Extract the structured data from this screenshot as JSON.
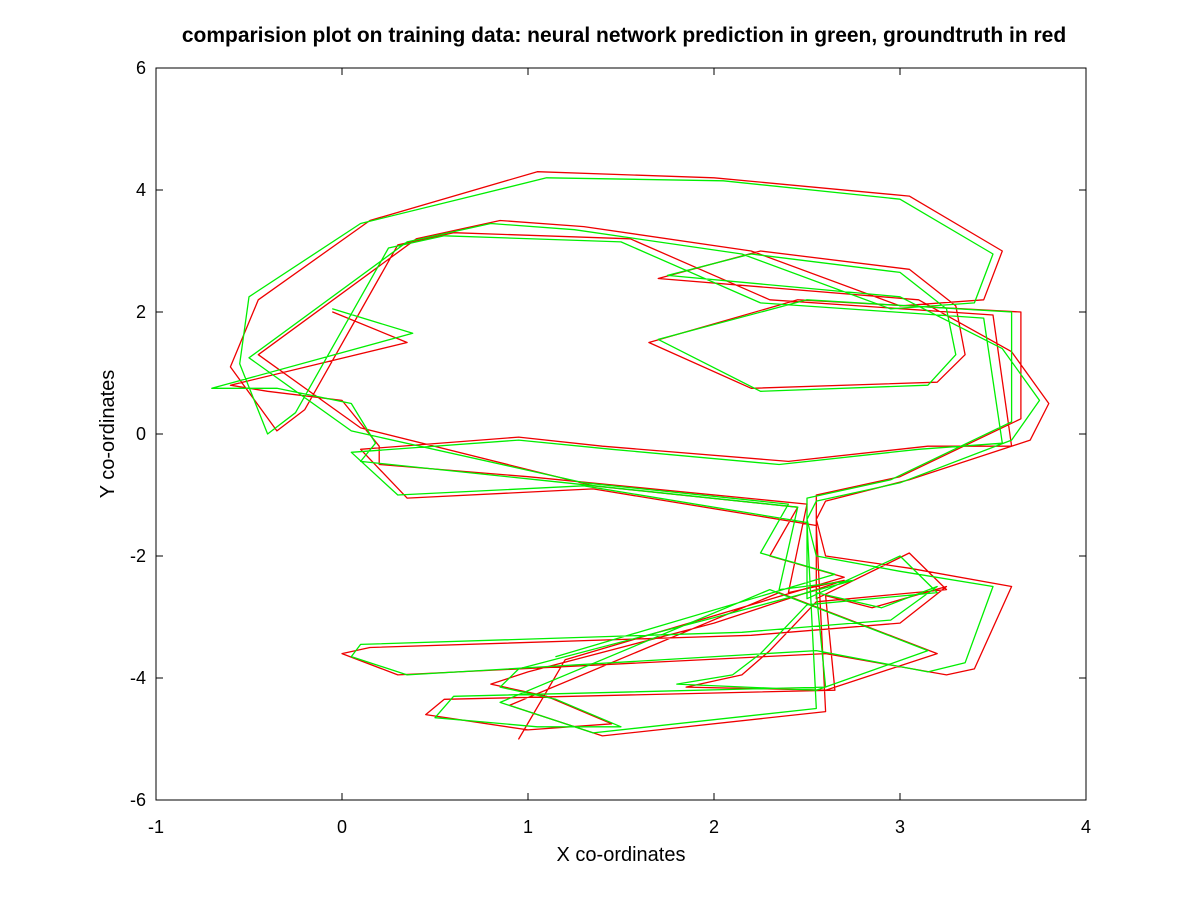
{
  "chart_data": {
    "type": "line",
    "title": "comparision plot on training data: neural network prediction in green, groundtruth in red",
    "xlabel": "X co-ordinates",
    "ylabel": "Y co-ordinates",
    "xlim": [
      -1,
      4
    ],
    "ylim": [
      -6,
      6
    ],
    "x_ticks": [
      -1,
      0,
      1,
      2,
      3,
      4
    ],
    "y_ticks": [
      -6,
      -4,
      -2,
      0,
      2,
      4,
      6
    ],
    "x_tick_labels": [
      "-1",
      "0",
      "1",
      "2",
      "3",
      "4"
    ],
    "y_tick_labels": [
      "-6",
      "-4",
      "-2",
      "0",
      "2",
      "4",
      "6"
    ],
    "grid": false,
    "legend": "none",
    "colors": {
      "green": "#00ee00",
      "red": "#ee0000"
    },
    "series": [
      {
        "color": "#ee0000",
        "points": [
          [
            -0.05,
            2.0
          ],
          [
            0.35,
            1.5
          ],
          [
            -0.6,
            0.8
          ],
          [
            -0.4,
            0.7
          ],
          [
            0.0,
            0.55
          ],
          [
            0.2,
            -0.2
          ],
          [
            0.2,
            -0.5
          ],
          [
            1.0,
            -0.7
          ],
          [
            2.5,
            -1.15
          ],
          [
            2.4,
            -2.6
          ],
          [
            2.7,
            -2.4
          ],
          [
            2.0,
            -3.1
          ],
          [
            1.0,
            -3.9
          ],
          [
            0.8,
            -4.1
          ],
          [
            1.1,
            -4.3
          ],
          [
            1.45,
            -4.75
          ],
          [
            1.0,
            -4.85
          ],
          [
            0.45,
            -4.6
          ],
          [
            0.55,
            -4.35
          ],
          [
            2.65,
            -4.2
          ],
          [
            2.6,
            -2.65
          ],
          [
            2.85,
            -2.85
          ],
          [
            3.25,
            -2.5
          ],
          [
            3.0,
            -3.1
          ],
          [
            2.2,
            -3.3
          ],
          [
            0.15,
            -3.5
          ],
          [
            0.0,
            -3.6
          ],
          [
            0.3,
            -3.95
          ],
          [
            2.6,
            -3.6
          ],
          [
            3.25,
            -3.95
          ],
          [
            3.4,
            -3.85
          ],
          [
            3.6,
            -2.5
          ],
          [
            3.05,
            -2.2
          ],
          [
            2.6,
            -2.0
          ],
          [
            2.55,
            -1.4
          ],
          [
            2.6,
            -1.1
          ],
          [
            3.05,
            -0.75
          ],
          [
            3.7,
            -0.1
          ],
          [
            3.8,
            0.5
          ],
          [
            3.6,
            1.35
          ],
          [
            3.1,
            2.2
          ],
          [
            1.7,
            2.55
          ],
          [
            2.25,
            3.0
          ],
          [
            3.05,
            2.7
          ],
          [
            3.3,
            2.1
          ],
          [
            3.35,
            1.3
          ],
          [
            3.2,
            0.85
          ],
          [
            2.2,
            0.75
          ],
          [
            1.65,
            1.5
          ],
          [
            2.45,
            2.2
          ],
          [
            3.65,
            2.0
          ],
          [
            3.65,
            0.25
          ],
          [
            3.0,
            -0.7
          ],
          [
            2.55,
            -1.0
          ],
          [
            2.55,
            -2.7
          ],
          [
            3.05,
            -1.95
          ],
          [
            3.25,
            -2.55
          ],
          [
            2.55,
            -2.75
          ],
          [
            2.3,
            -3.55
          ],
          [
            2.15,
            -3.95
          ],
          [
            1.85,
            -4.15
          ],
          [
            2.6,
            -4.2
          ],
          [
            3.2,
            -3.6
          ],
          [
            2.35,
            -2.6
          ],
          [
            0.9,
            -4.45
          ],
          [
            1.4,
            -4.95
          ],
          [
            2.6,
            -4.55
          ],
          [
            2.55,
            -1.5
          ],
          [
            1.35,
            -0.9
          ],
          [
            0.35,
            -1.05
          ],
          [
            0.1,
            -0.25
          ],
          [
            0.95,
            -0.05
          ],
          [
            1.4,
            -0.2
          ],
          [
            2.4,
            -0.45
          ],
          [
            3.15,
            -0.2
          ],
          [
            3.6,
            -0.2
          ],
          [
            3.5,
            1.95
          ],
          [
            2.3,
            2.2
          ],
          [
            1.55,
            3.2
          ],
          [
            0.6,
            3.3
          ],
          [
            0.3,
            3.1
          ],
          [
            -0.2,
            0.4
          ],
          [
            -0.35,
            0.05
          ],
          [
            -0.6,
            1.1
          ],
          [
            -0.45,
            2.2
          ],
          [
            0.15,
            3.5
          ],
          [
            1.05,
            4.3
          ],
          [
            2.0,
            4.2
          ],
          [
            3.05,
            3.9
          ],
          [
            3.55,
            3.0
          ],
          [
            3.45,
            2.2
          ],
          [
            3.0,
            2.1
          ],
          [
            2.2,
            3.0
          ],
          [
            1.3,
            3.4
          ],
          [
            0.85,
            3.5
          ],
          [
            0.4,
            3.2
          ],
          [
            -0.45,
            1.3
          ],
          [
            0.1,
            0.1
          ],
          [
            1.35,
            -0.85
          ],
          [
            2.45,
            -1.2
          ],
          [
            2.3,
            -2.0
          ],
          [
            2.7,
            -2.35
          ],
          [
            1.2,
            -3.7
          ],
          [
            0.95,
            -5.0
          ]
        ]
      },
      {
        "color": "#00ee00",
        "points": [
          [
            -0.05,
            2.05
          ],
          [
            0.38,
            1.65
          ],
          [
            -0.7,
            0.75
          ],
          [
            -0.35,
            0.75
          ],
          [
            0.05,
            0.5
          ],
          [
            0.18,
            -0.15
          ],
          [
            0.1,
            -0.45
          ],
          [
            1.05,
            -0.75
          ],
          [
            2.45,
            -1.2
          ],
          [
            2.35,
            -2.55
          ],
          [
            2.75,
            -2.4
          ],
          [
            1.95,
            -3.05
          ],
          [
            0.95,
            -3.85
          ],
          [
            0.85,
            -4.15
          ],
          [
            1.15,
            -4.35
          ],
          [
            1.5,
            -4.8
          ],
          [
            1.05,
            -4.8
          ],
          [
            0.5,
            -4.65
          ],
          [
            0.6,
            -4.3
          ],
          [
            2.6,
            -4.15
          ],
          [
            2.55,
            -2.6
          ],
          [
            2.9,
            -2.85
          ],
          [
            3.2,
            -2.5
          ],
          [
            2.95,
            -3.05
          ],
          [
            2.15,
            -3.25
          ],
          [
            0.1,
            -3.45
          ],
          [
            0.05,
            -3.65
          ],
          [
            0.35,
            -3.95
          ],
          [
            2.55,
            -3.55
          ],
          [
            3.15,
            -3.9
          ],
          [
            3.35,
            -3.75
          ],
          [
            3.5,
            -2.5
          ],
          [
            3.0,
            -2.25
          ],
          [
            2.55,
            -2.0
          ],
          [
            2.5,
            -1.4
          ],
          [
            2.55,
            -1.1
          ],
          [
            3.0,
            -0.8
          ],
          [
            3.6,
            -0.1
          ],
          [
            3.75,
            0.55
          ],
          [
            3.55,
            1.4
          ],
          [
            3.0,
            2.25
          ],
          [
            1.75,
            2.6
          ],
          [
            2.2,
            2.95
          ],
          [
            3.0,
            2.65
          ],
          [
            3.25,
            2.05
          ],
          [
            3.3,
            1.3
          ],
          [
            3.15,
            0.8
          ],
          [
            2.25,
            0.7
          ],
          [
            1.7,
            1.55
          ],
          [
            2.5,
            2.2
          ],
          [
            3.6,
            2.0
          ],
          [
            3.6,
            0.2
          ],
          [
            2.95,
            -0.75
          ],
          [
            2.5,
            -1.05
          ],
          [
            2.5,
            -2.7
          ],
          [
            3.0,
            -2.0
          ],
          [
            3.2,
            -2.6
          ],
          [
            2.5,
            -2.8
          ],
          [
            2.25,
            -3.6
          ],
          [
            2.1,
            -3.95
          ],
          [
            1.8,
            -4.1
          ],
          [
            2.55,
            -4.2
          ],
          [
            3.15,
            -3.55
          ],
          [
            2.3,
            -2.55
          ],
          [
            0.85,
            -4.4
          ],
          [
            1.35,
            -4.9
          ],
          [
            2.55,
            -4.5
          ],
          [
            2.5,
            -1.45
          ],
          [
            1.3,
            -0.85
          ],
          [
            0.3,
            -1.0
          ],
          [
            0.05,
            -0.3
          ],
          [
            0.95,
            -0.1
          ],
          [
            1.45,
            -0.25
          ],
          [
            2.35,
            -0.5
          ],
          [
            3.1,
            -0.25
          ],
          [
            3.55,
            -0.15
          ],
          [
            3.45,
            1.9
          ],
          [
            2.25,
            2.15
          ],
          [
            1.5,
            3.15
          ],
          [
            0.55,
            3.25
          ],
          [
            0.25,
            3.05
          ],
          [
            -0.25,
            0.35
          ],
          [
            -0.4,
            0.0
          ],
          [
            -0.55,
            1.15
          ],
          [
            -0.5,
            2.25
          ],
          [
            0.1,
            3.45
          ],
          [
            1.1,
            4.2
          ],
          [
            2.05,
            4.15
          ],
          [
            3.0,
            3.85
          ],
          [
            3.5,
            2.95
          ],
          [
            3.4,
            2.15
          ],
          [
            2.95,
            2.05
          ],
          [
            2.15,
            2.95
          ],
          [
            1.25,
            3.35
          ],
          [
            0.8,
            3.45
          ],
          [
            0.35,
            3.15
          ],
          [
            -0.5,
            1.25
          ],
          [
            0.05,
            0.05
          ],
          [
            1.3,
            -0.8
          ],
          [
            2.4,
            -1.15
          ],
          [
            2.25,
            -1.95
          ],
          [
            2.65,
            -2.3
          ],
          [
            1.15,
            -3.65
          ]
        ]
      }
    ]
  }
}
